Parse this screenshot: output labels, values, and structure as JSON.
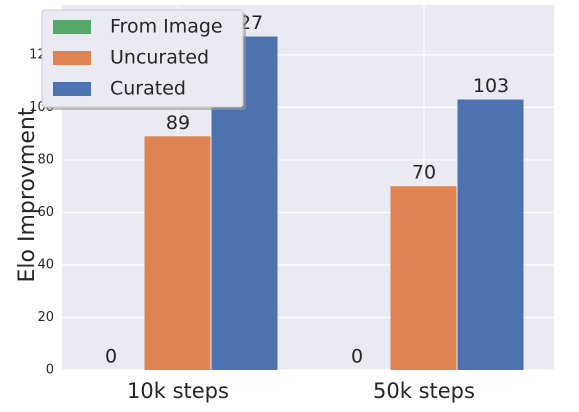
{
  "chart_data": {
    "type": "bar",
    "y_label": "Elo Improvment",
    "categories": [
      "10k steps",
      "50k steps"
    ],
    "series": [
      {
        "name": "From Image",
        "color": "#55a868",
        "values": [
          0,
          0
        ]
      },
      {
        "name": "Uncurated",
        "color": "#dd8452",
        "values": [
          89,
          70
        ]
      },
      {
        "name": "Curated",
        "color": "#4c72b0",
        "values": [
          127,
          103
        ]
      }
    ],
    "ylim": [
      0,
      139
    ],
    "yticks": [
      0,
      20,
      40,
      60,
      80,
      100,
      120
    ],
    "grid": true,
    "legend": "upper left"
  }
}
